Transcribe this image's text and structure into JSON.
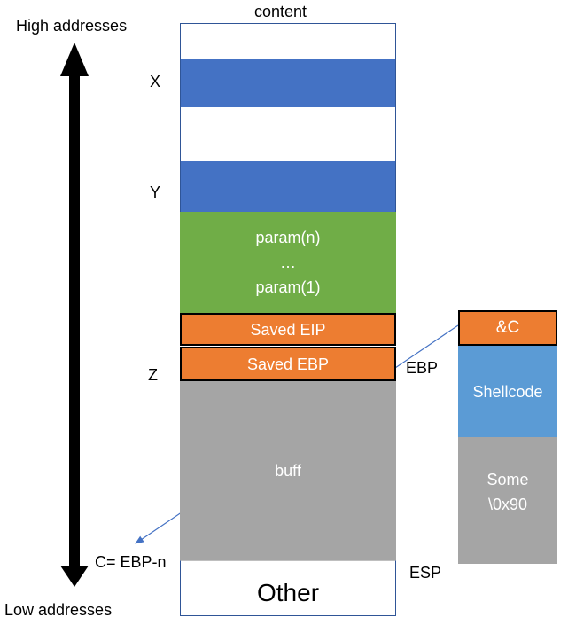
{
  "labels": {
    "content": "content",
    "high_addresses": "High addresses",
    "low_addresses": "Low addresses",
    "x": "X",
    "y": "Y",
    "z": "Z",
    "ebp": "EBP",
    "esp": "ESP",
    "c_pointer": "C= EBP-n"
  },
  "stack": {
    "params": [
      "param(n)",
      "…",
      "param(1)"
    ],
    "saved_eip": "Saved EIP",
    "saved_ebp": "Saved EBP",
    "buff": "buff",
    "other": "Other"
  },
  "payload": {
    "address": "&C",
    "shellcode": "Shellcode",
    "nop_line1": "Some",
    "nop_line2": "\\0x90"
  },
  "colors": {
    "blue": "#4472C4",
    "green": "#70AD47",
    "orange": "#ED7D31",
    "gray": "#A5A5A5",
    "light_blue": "#5B9BD5",
    "border": "#2F5597",
    "arrow_line": "#4472C4"
  }
}
